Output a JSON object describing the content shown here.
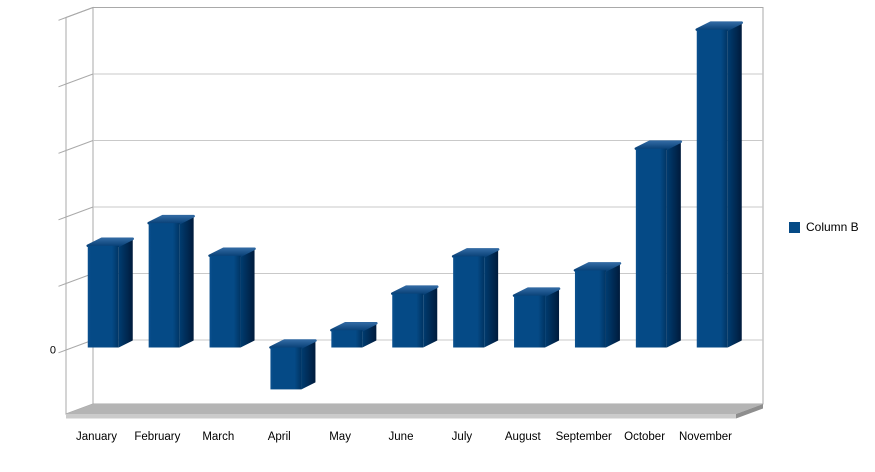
{
  "chart_data": {
    "type": "bar",
    "style": "3d",
    "title": "",
    "xlabel": "",
    "ylabel": "",
    "categories": [
      "January",
      "February",
      "March",
      "April",
      "May",
      "June",
      "July",
      "August",
      "September",
      "October",
      "November"
    ],
    "series": [
      {
        "name": "Column B",
        "values": [
          15.3,
          18.7,
          13.8,
          -6.3,
          2.6,
          8.1,
          13.7,
          7.8,
          11.6,
          29.9,
          47.8
        ]
      }
    ],
    "y_axis": {
      "labeled_ticks": [
        "0"
      ],
      "gridline_spacing": 10,
      "ylim": [
        -9.6,
        50
      ],
      "grid": true
    },
    "legend": {
      "position": "right",
      "entries": [
        "Column B"
      ]
    }
  },
  "legend": {
    "label": "Column B"
  },
  "axis": {
    "zero_label": "0"
  },
  "colors": {
    "background": "#FFFFFF",
    "bar_front": "#054A86",
    "bar_front_edge_dark": "#003463",
    "bar_front_edge_light": "#0B508E",
    "bar_side_light": "#003C70",
    "bar_side_dark": "#001B3C",
    "bar_top_light": "#2F67A0",
    "bar_top_dark": "#0A4278",
    "wall_fill": "#FFFFFF",
    "wall_border": "#A9A9A9",
    "gridline": "#C9C9C9",
    "floor_top": "#B4B4B4",
    "floor_front": "#CBCBCB",
    "floor_side": "#8E8E8E",
    "text": "#000000"
  }
}
